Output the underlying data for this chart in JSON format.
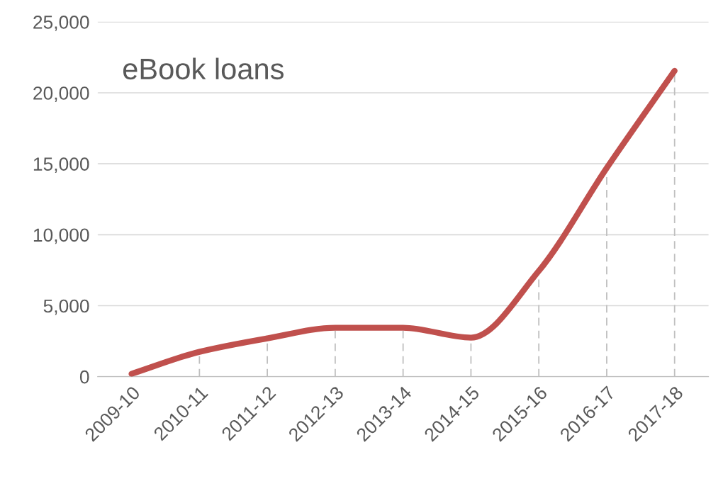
{
  "chart_data": {
    "type": "line",
    "title": "eBook loans",
    "categories": [
      "2009-10",
      "2010-11",
      "2011-12",
      "2012-13",
      "2013-14",
      "2014-15",
      "2015-16",
      "2016-17",
      "2017-18"
    ],
    "series": [
      {
        "color": "#c0504d",
        "values": [
          200,
          1750,
          2700,
          3450,
          3450,
          2750,
          7450,
          14700,
          21550
        ],
        "errors": [
          [
            0,
            200
          ],
          [
            0,
            1750
          ],
          [
            0,
            2700
          ],
          [
            0,
            3450
          ],
          [
            0,
            3450
          ],
          [
            0,
            2750
          ],
          [
            0,
            7450
          ],
          [
            0,
            14700
          ],
          [
            0,
            21550
          ]
        ]
      }
    ],
    "ylim": [
      0,
      25000
    ],
    "yticks": [
      {
        "value": 0,
        "label": "0"
      },
      {
        "value": 5000,
        "label": "5,000"
      },
      {
        "value": 10000,
        "label": "10,000"
      },
      {
        "value": 15000,
        "label": "15,000"
      },
      {
        "value": 20000,
        "label": "20,000"
      },
      {
        "value": 25000,
        "label": "25,000"
      }
    ],
    "grid": "y",
    "marker": "none",
    "line_style": "solid"
  }
}
